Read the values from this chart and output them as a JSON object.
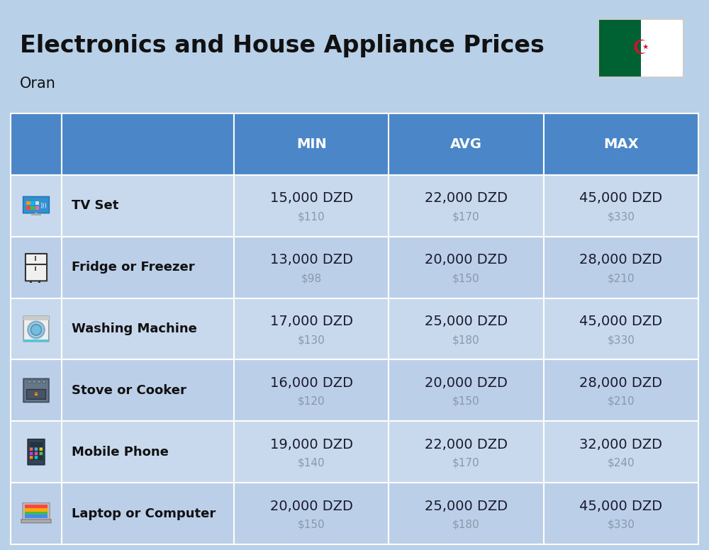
{
  "title": "Electronics and House Appliance Prices",
  "subtitle": "Oran",
  "bg_color": "#b8d0e8",
  "header_color": "#4a86c8",
  "header_text_color": "#ffffff",
  "row_bg_even": "#c8d8ed",
  "row_bg_odd": "#bccfe8",
  "separator_color": "#ffffff",
  "columns": [
    "MIN",
    "AVG",
    "MAX"
  ],
  "items": [
    {
      "name": "TV Set",
      "min_dzd": "15,000 DZD",
      "min_usd": "$110",
      "avg_dzd": "22,000 DZD",
      "avg_usd": "$170",
      "max_dzd": "45,000 DZD",
      "max_usd": "$330"
    },
    {
      "name": "Fridge or Freezer",
      "min_dzd": "13,000 DZD",
      "min_usd": "$98",
      "avg_dzd": "20,000 DZD",
      "avg_usd": "$150",
      "max_dzd": "28,000 DZD",
      "max_usd": "$210"
    },
    {
      "name": "Washing Machine",
      "min_dzd": "17,000 DZD",
      "min_usd": "$130",
      "avg_dzd": "25,000 DZD",
      "avg_usd": "$180",
      "max_dzd": "45,000 DZD",
      "max_usd": "$330"
    },
    {
      "name": "Stove or Cooker",
      "min_dzd": "16,000 DZD",
      "min_usd": "$120",
      "avg_dzd": "20,000 DZD",
      "avg_usd": "$150",
      "max_dzd": "28,000 DZD",
      "max_usd": "$210"
    },
    {
      "name": "Mobile Phone",
      "min_dzd": "19,000 DZD",
      "min_usd": "$140",
      "avg_dzd": "22,000 DZD",
      "avg_usd": "$170",
      "max_dzd": "32,000 DZD",
      "max_usd": "$240"
    },
    {
      "name": "Laptop or Computer",
      "min_dzd": "20,000 DZD",
      "min_usd": "$150",
      "avg_dzd": "25,000 DZD",
      "avg_usd": "$180",
      "max_dzd": "45,000 DZD",
      "max_usd": "$330"
    }
  ],
  "title_fontsize": 24,
  "subtitle_fontsize": 15,
  "header_fontsize": 14,
  "name_fontsize": 13,
  "price_fontsize": 14,
  "usd_fontsize": 11,
  "price_color": "#1a1a2e",
  "usd_color": "#8899aa",
  "name_color": "#111111",
  "flag_green": "#006233",
  "flag_white": "#ffffff",
  "flag_red": "#d21034"
}
